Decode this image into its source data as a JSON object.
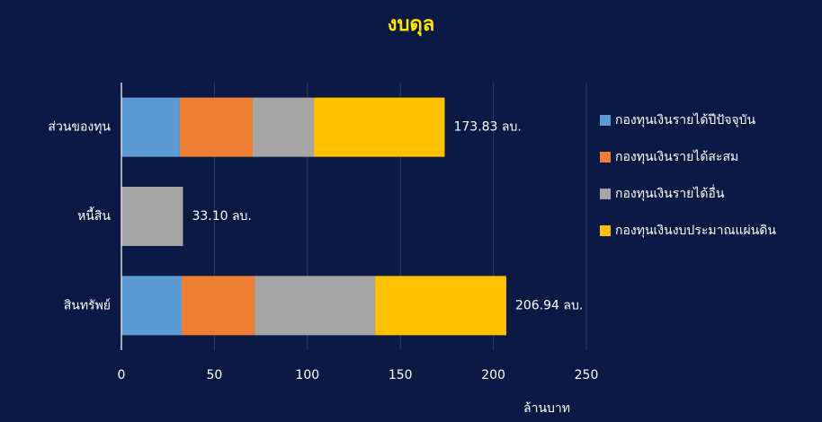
{
  "chart_data": {
    "type": "stacked_bar_horizontal",
    "title": "งบดุล",
    "categories": [
      "ส่วนของทุน",
      "หนี้สิน",
      "สินทรัพย์"
    ],
    "series": [
      {
        "name": "กองทุนเงินรายได้ปีปัจจุบัน",
        "color": "#5b9bd5",
        "values": [
          31.4,
          0,
          32.4
        ]
      },
      {
        "name": "กองทุนเงินรายได้สะสม",
        "color": "#ed7d31",
        "values": [
          39.2,
          0,
          39.2
        ]
      },
      {
        "name": "กองทุนเงินรายได้อื่น",
        "color": "#a5a5a5",
        "values": [
          32.9,
          33.1,
          64.8
        ]
      },
      {
        "name": "กองทุนเงินงบประมาณแผ่นดิน",
        "color": "#ffc000",
        "values": [
          70.33,
          0,
          70.54
        ]
      }
    ],
    "totals": [
      173.83,
      33.1,
      206.94
    ],
    "total_labels": [
      "173.83 ลบ.",
      "33.10 ลบ.",
      "206.94 ลบ."
    ],
    "xlabel": "ล้านบาท",
    "xlim": [
      0,
      250
    ],
    "xticks": [
      0,
      50,
      100,
      150,
      200,
      250
    ],
    "grid": true
  }
}
